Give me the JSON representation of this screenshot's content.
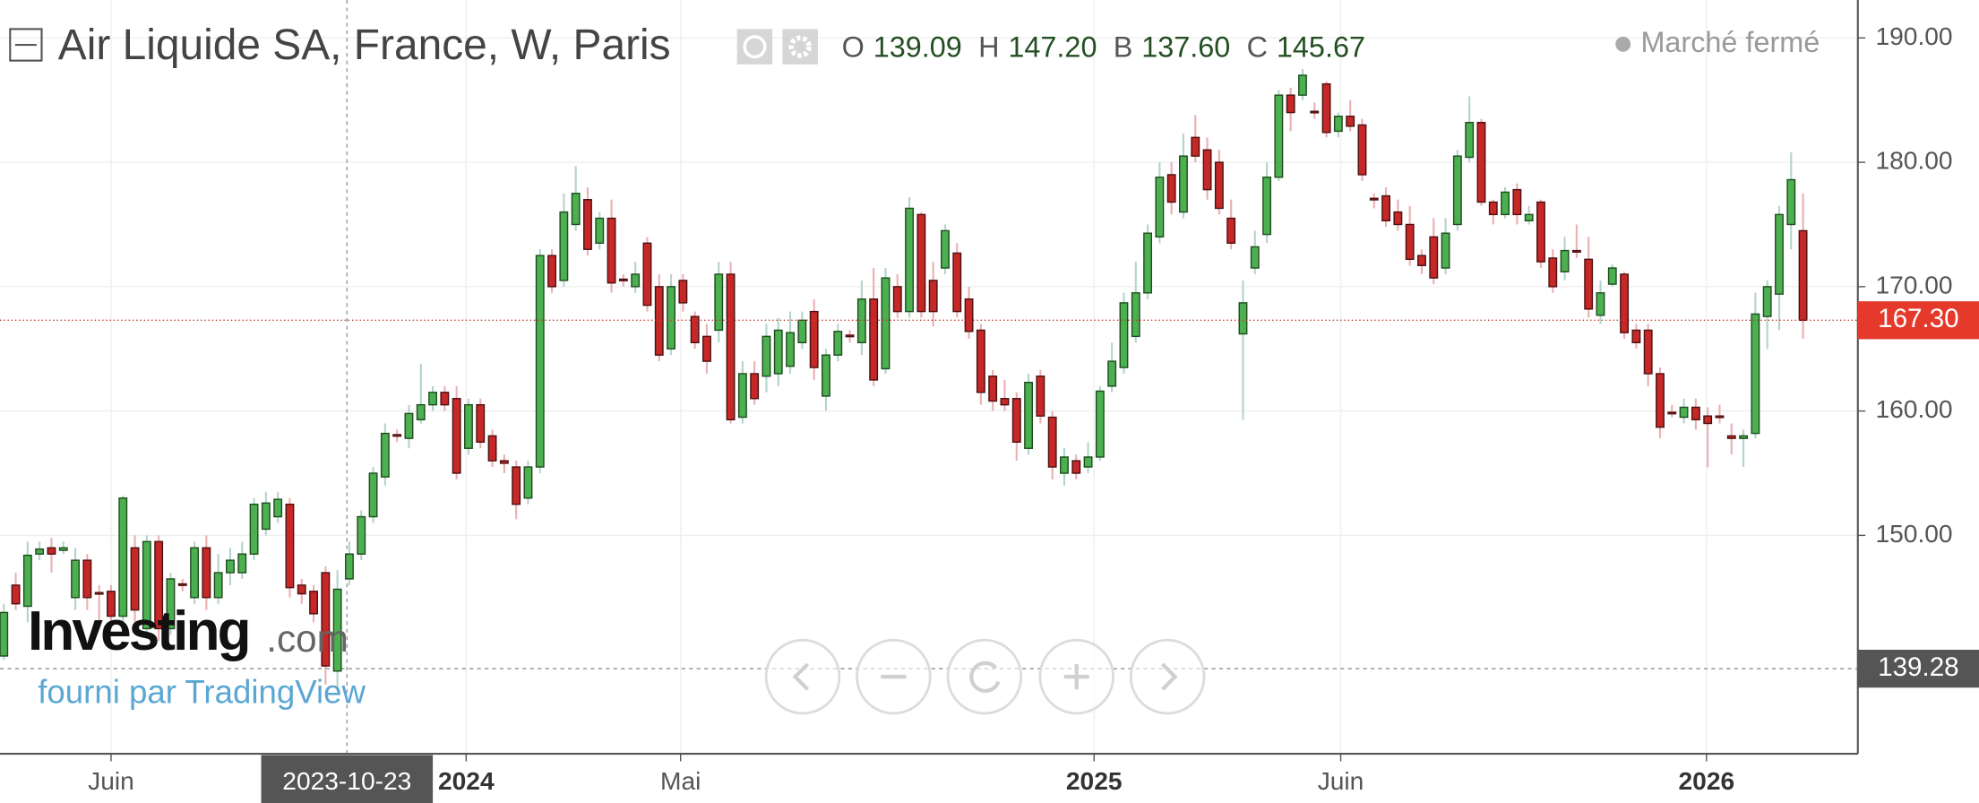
{
  "chart_data": {
    "type": "candlestick",
    "title": "Air Liquide SA, France, W, Paris",
    "legend": [
      {
        "key": "O",
        "value": "139.09"
      },
      {
        "key": "H",
        "value": "147.20"
      },
      {
        "key": "B",
        "value": "137.60"
      },
      {
        "key": "C",
        "value": "145.67"
      }
    ],
    "status": "Marché fermé",
    "watermark_brand": "Investing",
    "watermark_suffix": ".com",
    "credit": "fourni par TradingView",
    "up_color": "#4caf50",
    "down_color": "#c62828",
    "grid": true,
    "xlim": [
      -0.32,
      155.6
    ],
    "xticks": [
      {
        "value": 9.0,
        "label": "Juin"
      },
      {
        "value": 38.8,
        "label": "2024"
      },
      {
        "value": 56.8,
        "label": "Mai"
      },
      {
        "value": 91.5,
        "label": "2025"
      },
      {
        "value": 112.2,
        "label": "Juin"
      },
      {
        "value": 142.9,
        "label": "2026"
      }
    ],
    "ylim": [
      132.44,
      193.05
    ],
    "yticks": [
      {
        "value": 150,
        "label": "150.00"
      },
      {
        "value": 160,
        "label": "160.00"
      },
      {
        "value": 170,
        "label": "170.00"
      },
      {
        "value": 180,
        "label": "180.00"
      },
      {
        "value": 190,
        "label": "190.00"
      }
    ],
    "last_price": {
      "value": 167.3,
      "label": "167.30"
    },
    "crosshair": {
      "x": 28.8,
      "x_label": "2023-10-23",
      "y": 139.28
    },
    "open": [
      140.3,
      146,
      144.3,
      148.5,
      149,
      148.8,
      145,
      148,
      145.4,
      145.5,
      143.5,
      149,
      142.5,
      149.5,
      142.5,
      146.1,
      145,
      149,
      145,
      147,
      147,
      148.5,
      150.5,
      151.5,
      152.5,
      146,
      145.5,
      147,
      139.09,
      146.5,
      148.5,
      151.5,
      154.7,
      158.1,
      157.8,
      159.3,
      160.5,
      161.5,
      161,
      157,
      160.5,
      158,
      156,
      155.5,
      153,
      155.5,
      172.5,
      170.5,
      175,
      177,
      173.5,
      175.5,
      170.6,
      170,
      173.5,
      170,
      165,
      170.5,
      167.6,
      166,
      166.5,
      171,
      159.5,
      163,
      162.8,
      163,
      163.6,
      165.5,
      168,
      161.2,
      164.5,
      166.1,
      165.5,
      169,
      163.4,
      170,
      168,
      175.8,
      170.5,
      171.5,
      172.7,
      169,
      166.5,
      162.8,
      161,
      161,
      157,
      162.8,
      159.5,
      155,
      156,
      155.5,
      156.3,
      162,
      163.5,
      166,
      169.5,
      174,
      179,
      176,
      182,
      181,
      180,
      175.5,
      166.2,
      171.5,
      174.2,
      178.8,
      185.4,
      185.4,
      184.1,
      186.3,
      182.5,
      183.7,
      183,
      177.1,
      177.3,
      176,
      175,
      172.5,
      174,
      171.5,
      175,
      180.4,
      183.2,
      176.8,
      175.8,
      177.8,
      175.3,
      176.8,
      172.3,
      171.2,
      172.9,
      172.2,
      167.7,
      170.2,
      171,
      166.5,
      166.5,
      163,
      159.9,
      159.5,
      160.3,
      159.6,
      159.6,
      158,
      157.8,
      158.2,
      167.6,
      169.4,
      175,
      174.5
    ],
    "high": [
      144.5,
      147,
      149.5,
      149.5,
      149.8,
      149.5,
      149,
      148.5,
      146,
      146,
      153.2,
      150,
      150,
      150,
      147,
      146.5,
      149.5,
      150,
      148.5,
      149,
      149.5,
      153,
      153.5,
      153.5,
      153,
      146.5,
      146,
      147.5,
      147.2,
      149.5,
      152,
      155.5,
      159,
      158.5,
      160.5,
      163.8,
      162,
      162,
      162,
      161,
      161,
      158.5,
      156.5,
      156,
      156,
      173,
      173,
      177.5,
      179.7,
      178,
      176,
      177,
      171,
      172,
      174,
      171,
      171,
      171,
      168,
      167,
      172,
      172,
      164,
      164,
      167,
      167.5,
      168,
      168,
      169,
      165,
      167,
      166.5,
      170.5,
      171.5,
      171.5,
      171,
      177.2,
      176,
      172,
      175,
      173.5,
      170,
      167,
      163.3,
      162.5,
      161.5,
      163,
      163.3,
      160,
      157,
      156.5,
      157.5,
      162,
      165.5,
      169.5,
      172,
      175,
      180,
      180,
      182.3,
      183.8,
      182,
      181,
      177,
      170.5,
      174.5,
      180,
      185.8,
      186,
      187.5,
      184.8,
      186.5,
      184,
      185,
      183.5,
      177.5,
      178,
      177,
      176.5,
      173,
      175.5,
      175.5,
      181,
      185.3,
      183.5,
      177,
      178,
      178.3,
      176.5,
      177,
      173,
      174,
      175,
      174,
      170.5,
      171.8,
      171.2,
      167,
      167,
      163.5,
      160.5,
      161,
      161,
      160.3,
      160.5,
      159,
      158.5,
      169.5,
      170.5,
      176.5,
      180.8,
      177.5
    ],
    "low": [
      140,
      144,
      143,
      148,
      147,
      148.5,
      144,
      144,
      143,
      142.5,
      142,
      143,
      142,
      141.5,
      142,
      145.5,
      144.5,
      144,
      144.5,
      146,
      146.5,
      148,
      150,
      151,
      145,
      144.5,
      143,
      138,
      137.6,
      146,
      148,
      151,
      154,
      157.5,
      157,
      159,
      160,
      160,
      154.5,
      156.5,
      157,
      155.5,
      155,
      151.3,
      152.5,
      155,
      169.5,
      170,
      174.5,
      172.5,
      173,
      169.5,
      170,
      169.5,
      168,
      164,
      164.5,
      168,
      165,
      163,
      165.5,
      159,
      159,
      160.5,
      161.5,
      162,
      163,
      165,
      162.5,
      160,
      164,
      165.5,
      164.5,
      162,
      163,
      167.5,
      167.5,
      167.5,
      166.8,
      171,
      167.5,
      165.8,
      160.5,
      160,
      160,
      156,
      156.5,
      159,
      154.5,
      154,
      154.5,
      155,
      156,
      161.5,
      163,
      165.5,
      169,
      173.5,
      175.8,
      175.5,
      180,
      177,
      175.8,
      173,
      159.3,
      171,
      173.5,
      178.5,
      182.5,
      185,
      183.5,
      182,
      182,
      182.5,
      178.5,
      176.3,
      174.8,
      174.5,
      171.7,
      171,
      170.2,
      171,
      174.5,
      180,
      176.5,
      175,
      175.5,
      175,
      175,
      171.5,
      169.5,
      170.5,
      172.3,
      167.5,
      167,
      170,
      165.8,
      165,
      162,
      157.8,
      159.5,
      159,
      158.5,
      155.5,
      159,
      156.5,
      155.5,
      157.8,
      165,
      166.5,
      173,
      165.8
    ],
    "close": [
      143.8,
      144.5,
      148.4,
      148.9,
      148.5,
      149,
      148,
      145,
      145.3,
      143.5,
      153,
      144,
      149.5,
      142.5,
      146.5,
      146,
      149,
      145,
      147,
      148,
      148.5,
      152.5,
      152.6,
      152.9,
      145.8,
      145.3,
      143.7,
      139.5,
      145.67,
      148.5,
      151.5,
      155,
      158.2,
      158,
      159.8,
      160.5,
      161.5,
      160.5,
      155,
      160.5,
      157.5,
      156,
      155.8,
      152.5,
      155.5,
      172.5,
      170,
      176,
      177.5,
      173,
      175.5,
      170.3,
      170.5,
      171,
      168.5,
      164.5,
      170,
      168.7,
      165.5,
      164,
      171,
      159.3,
      163,
      161,
      166,
      166.5,
      166.3,
      167.3,
      163.5,
      164.5,
      166.4,
      166,
      169,
      162.5,
      170.7,
      168,
      176.3,
      168,
      168,
      174.5,
      168,
      166.4,
      161.5,
      160.8,
      160.5,
      157.5,
      162.3,
      159.6,
      155.5,
      156.3,
      155,
      156.3,
      161.6,
      164,
      168.7,
      169.5,
      174.3,
      178.8,
      176.8,
      180.5,
      180.5,
      177.8,
      176.3,
      173.5,
      168.7,
      173.2,
      178.8,
      185.4,
      184,
      187,
      184,
      182.4,
      183.7,
      182.9,
      179,
      177,
      175.3,
      175,
      172.2,
      171.7,
      170.7,
      174.3,
      180.5,
      183.2,
      176.8,
      175.8,
      177.6,
      175.8,
      175.8,
      172,
      170,
      172.9,
      172.8,
      168.2,
      169.5,
      171.5,
      166.3,
      165.5,
      163,
      158.7,
      159.8,
      160.3,
      159.3,
      159,
      159.5,
      157.8,
      158,
      167.8,
      170,
      175.8,
      178.6,
      167.3
    ]
  }
}
